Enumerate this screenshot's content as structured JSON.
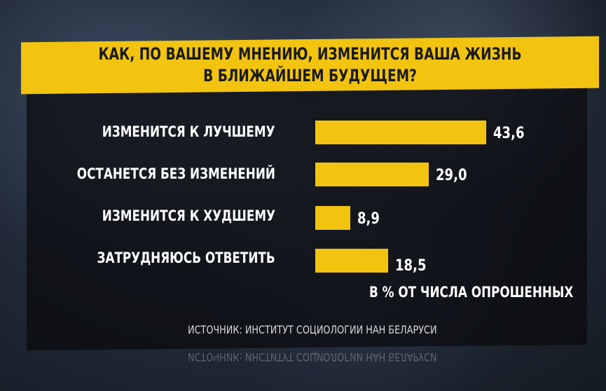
{
  "chart_data": {
    "type": "bar",
    "orientation": "horizontal",
    "title_lines": [
      "КАК, ПО ВАШЕМУ МНЕНИЮ, ИЗМЕНИТСЯ ВАША ЖИЗНЬ",
      "В БЛИЖАЙШЕМ БУДУЩЕМ?"
    ],
    "categories": [
      "ИЗМЕНИТСЯ К ЛУЧШЕМУ",
      "ОСТАНЕТСЯ БЕЗ ИЗМЕНЕНИЙ",
      "ИЗМЕНИТСЯ К ХУДШЕМУ",
      "ЗАТРУДНЯЮСЬ ОТВЕТИТЬ"
    ],
    "values": [
      43.6,
      29.0,
      8.9,
      18.5
    ],
    "value_labels": [
      "43,6",
      "29,0",
      "8,9",
      "18,5"
    ],
    "unit_note": "В % ОТ ЧИСЛА ОПРОШЕННЫХ",
    "source": "ИСТОЧНИК: ИНСТИТУТ СОЦИОЛОГИИ НАН БЕЛАРУСИ",
    "bar_color": "#f2c40f",
    "xlim": [
      0,
      43.6
    ]
  }
}
